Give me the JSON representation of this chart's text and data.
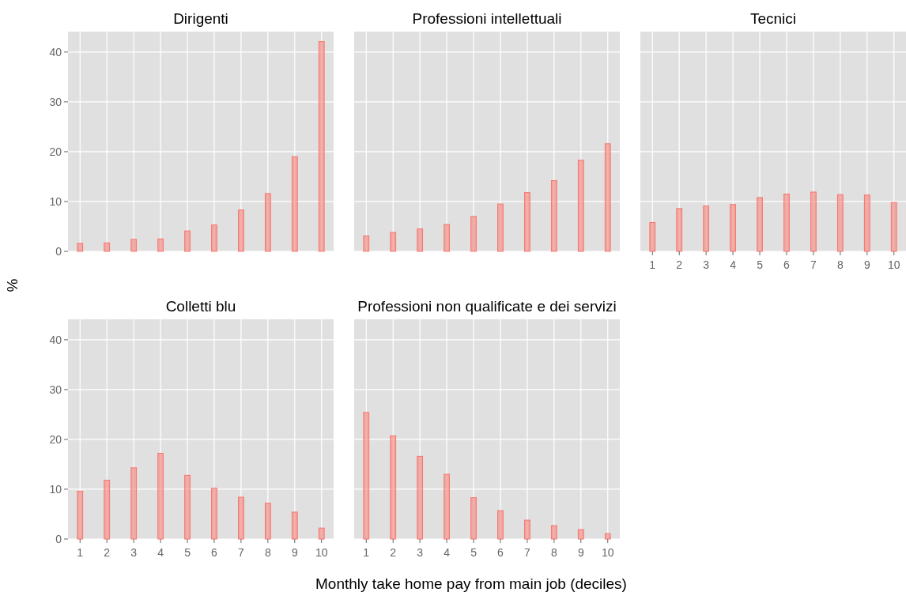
{
  "chart_data": [
    {
      "type": "bar",
      "title": "Dirigenti",
      "ylabel": "%",
      "x": [
        1,
        2,
        3,
        4,
        5,
        6,
        7,
        8,
        9,
        10
      ],
      "values": [
        1.6,
        1.7,
        2.4,
        2.5,
        4.1,
        5.3,
        8.3,
        11.6,
        19.0,
        42.1
      ],
      "color": "#f8766d",
      "xlim": [
        0.55,
        10.45
      ],
      "xticks": [
        1,
        2,
        3,
        4,
        5,
        6,
        7,
        8,
        9,
        10
      ],
      "ylim": [
        0,
        44.1
      ],
      "yticks": [
        0,
        10,
        20,
        30,
        40
      ],
      "grid": true,
      "tick_labels": "y"
    },
    {
      "type": "bar",
      "title": "Professioni intellettuali",
      "x": [
        1,
        2,
        3,
        4,
        5,
        6,
        7,
        8,
        9,
        10
      ],
      "values": [
        3.1,
        3.8,
        4.5,
        5.4,
        7.0,
        9.5,
        11.8,
        14.2,
        18.3,
        21.6
      ],
      "color": "#f8766d",
      "xlim": [
        0.55,
        10.45
      ],
      "xticks": [
        1,
        2,
        3,
        4,
        5,
        6,
        7,
        8,
        9,
        10
      ],
      "ylim": [
        0,
        44.1
      ],
      "yticks": [
        0,
        10,
        20,
        30,
        40
      ],
      "grid": true,
      "tick_labels": false
    },
    {
      "type": "bar",
      "title": "Tecnici",
      "x": [
        1,
        2,
        3,
        4,
        5,
        6,
        7,
        8,
        9,
        10
      ],
      "values": [
        5.8,
        8.6,
        9.1,
        9.4,
        10.8,
        11.5,
        11.9,
        11.4,
        11.3,
        9.8
      ],
      "color": "#f8766d",
      "xlim": [
        0.55,
        10.45
      ],
      "xticks": [
        1,
        2,
        3,
        4,
        5,
        6,
        7,
        8,
        9,
        10
      ],
      "ylim": [
        0,
        44.1
      ],
      "yticks": [
        0,
        10,
        20,
        30,
        40
      ],
      "grid": true,
      "tick_labels": "x"
    },
    {
      "type": "bar",
      "title": "Colletti blu",
      "x": [
        1,
        2,
        3,
        4,
        5,
        6,
        7,
        8,
        9,
        10
      ],
      "values": [
        9.6,
        11.8,
        14.3,
        17.2,
        12.8,
        10.2,
        8.4,
        7.2,
        5.4,
        2.2
      ],
      "color": "#f8766d",
      "xlim": [
        0.55,
        10.45
      ],
      "xticks": [
        1,
        2,
        3,
        4,
        5,
        6,
        7,
        8,
        9,
        10
      ],
      "ylim": [
        0,
        44.1
      ],
      "yticks": [
        0,
        10,
        20,
        30,
        40
      ],
      "grid": true
    },
    {
      "type": "bar",
      "title": "Professioni non qualificate e dei servizi",
      "xlabel": "Monthly take home pay from main job (deciles)",
      "x": [
        1,
        2,
        3,
        4,
        5,
        6,
        7,
        8,
        9,
        10
      ],
      "values": [
        25.4,
        20.7,
        16.6,
        13.0,
        8.3,
        5.7,
        3.8,
        2.7,
        1.9,
        1.1
      ],
      "color": "#f8766d",
      "xlim": [
        0.55,
        10.45
      ],
      "xticks": [
        1,
        2,
        3,
        4,
        5,
        6,
        7,
        8,
        9,
        10
      ],
      "ylim": [
        0,
        44.1
      ],
      "yticks": [
        0,
        10,
        20,
        30,
        40
      ],
      "grid": true,
      "tick_labels": "x"
    }
  ]
}
